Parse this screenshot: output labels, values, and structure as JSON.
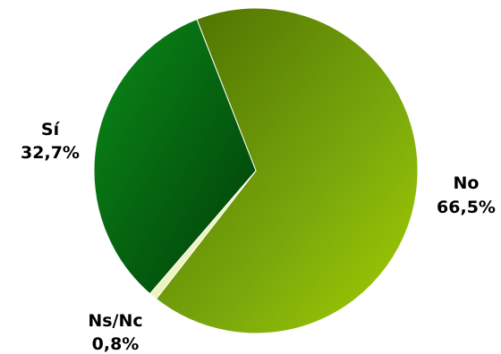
{
  "chart_data": {
    "type": "pie",
    "title": "",
    "slices": [
      {
        "label": "No",
        "value": 66.5,
        "value_text": "66,5%",
        "color": "#7fae12"
      },
      {
        "label": "Ns/Nc",
        "value": 0.8,
        "value_text": "0,8%",
        "color": "#f0f5c4"
      },
      {
        "label": "Sí",
        "value": 32.7,
        "value_text": "32,7%",
        "color": "#0e6c12"
      }
    ],
    "start_angle_deg": -21.4,
    "direction": "clockwise",
    "legend": "none"
  }
}
